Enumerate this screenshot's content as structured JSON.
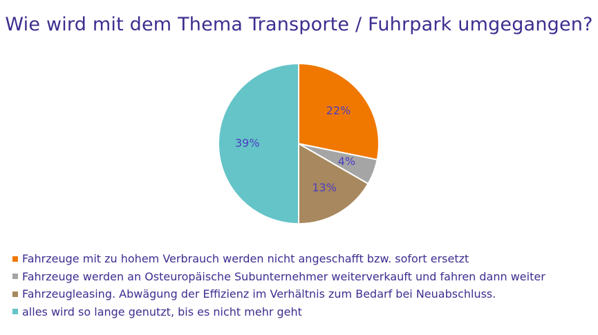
{
  "chart_data": {
    "type": "pie",
    "title": "Wie wird mit dem Thema Transporte / Fuhrpark umgegangen?",
    "slices": [
      {
        "name": "Fahrzeuge mit zu hohem Verbrauch werden nicht angeschafft bzw. sofort ersetzt",
        "value": 22,
        "label": "22%",
        "color": "#f07800"
      },
      {
        "name": "Fahrzeuge werden an Osteuropäische Subunternehmer weiterverkauft und fahren dann weiter",
        "value": 4,
        "label": "4%",
        "color": "#a5a5a5"
      },
      {
        "name": "Fahrzeugleasing. Abwägung der Effizienz im Verhältnis zum Bedarf bei Neuabschluss.",
        "value": 13,
        "label": "13%",
        "color": "#a8885e"
      },
      {
        "name": "alles wird so lange genutzt, bis es nicht mehr geht",
        "value": 39,
        "label": "39%",
        "color": "#64c4c8"
      }
    ],
    "start_angle_deg": 0,
    "direction": "clockwise",
    "legend_position": "bottom-left"
  }
}
